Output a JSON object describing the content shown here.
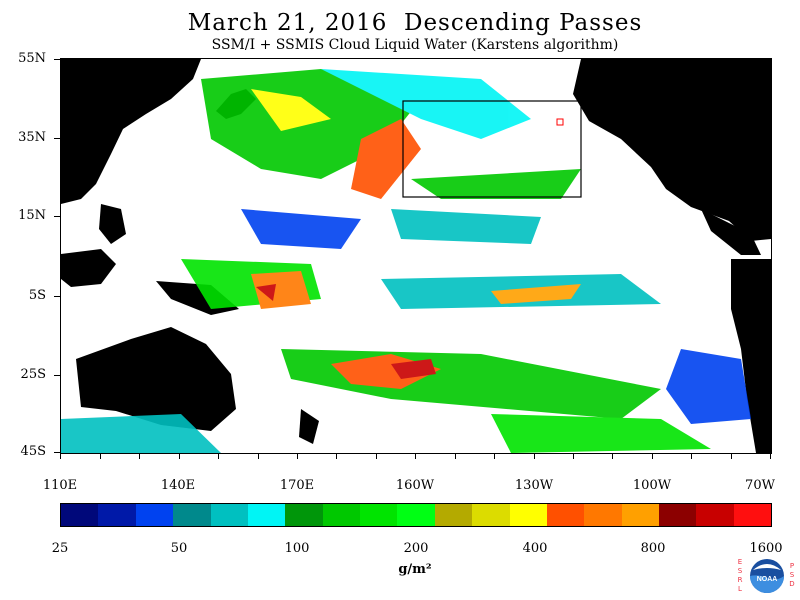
{
  "header": {
    "title": "March 21, 2016  Descending Passes",
    "subtitle": "SSM/I + SSMIS Cloud Liquid Water (Karstens algorithm)"
  },
  "map": {
    "lat_labels": [
      "55N",
      "35N",
      "15N",
      "5S",
      "25S",
      "45S"
    ],
    "lon_labels": [
      "110E",
      "140E",
      "170E",
      "160W",
      "130W",
      "100W",
      "70W"
    ]
  },
  "colorbar": {
    "colors": [
      "#00087a",
      "#0019a8",
      "#0042f0",
      "#00898c",
      "#00c0c0",
      "#00f5f5",
      "#00960a",
      "#00c800",
      "#00e400",
      "#00ff14",
      "#b4aa00",
      "#dcdc00",
      "#ffff00",
      "#ff5000",
      "#ff7800",
      "#ffa000",
      "#8c0000",
      "#c80000",
      "#ff0f0f"
    ],
    "labels": [
      "25",
      "50",
      "100",
      "200",
      "400",
      "800",
      "1600"
    ],
    "units": "g/m²"
  },
  "logo": {
    "left_letters": "ESRL",
    "right_letters": "PSD",
    "name": "NOAA"
  },
  "colors": {
    "land": "#000000",
    "no_data": "#ffffff",
    "box_outline": "#000000",
    "box_marker": "#ff0000"
  }
}
